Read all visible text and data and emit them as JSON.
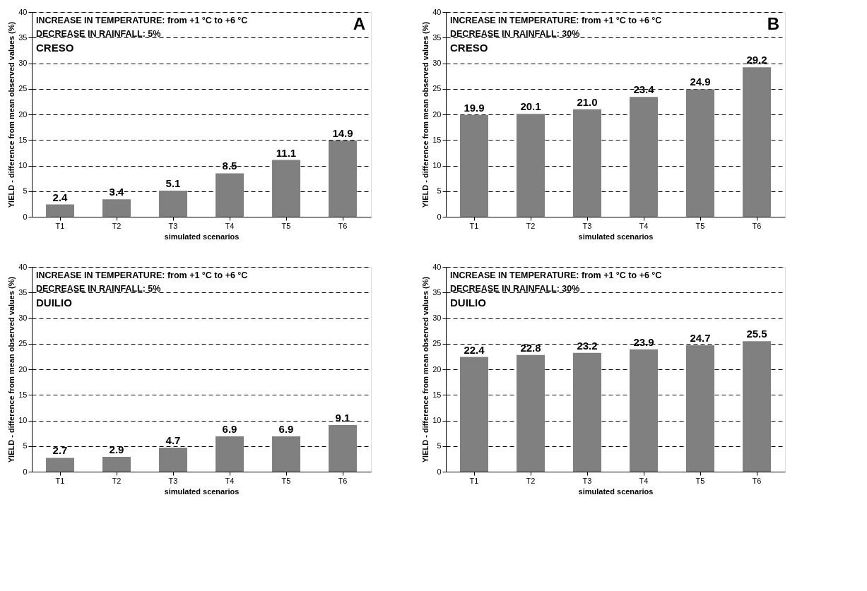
{
  "chart_data": [
    {
      "type": "bar",
      "title": "A",
      "xlabel": "simulated scenarios",
      "ylabel": "YIELD - difference from mean observed values (%)",
      "annotations": [
        "INCREASE IN TEMPERATURE: from +1 °C to +6 °C",
        "DECREASE IN RAINFALL: 5%",
        "CRESO"
      ],
      "categories": [
        "T1",
        "T2",
        "T3",
        "T4",
        "T5",
        "T6"
      ],
      "values": [
        2.4,
        3.4,
        5.1,
        8.5,
        11.1,
        14.9
      ],
      "value_labels": [
        "2.4",
        "3.4",
        "5.1",
        "8.5",
        "11.1",
        "14.9"
      ],
      "color": "#808080",
      "ylim": [
        0,
        40
      ],
      "yticks": [
        0,
        5,
        10,
        15,
        20,
        25,
        30,
        35,
        40
      ],
      "grid": "y"
    },
    {
      "type": "bar",
      "title": "B",
      "xlabel": "simulated scenarios",
      "ylabel": "YIELD - difference from mean observed values (%)",
      "annotations": [
        "INCREASE IN TEMPERATURE: from +1 °C to +6 °C",
        "DECREASE IN RAINFALL: 30%",
        "CRESO"
      ],
      "categories": [
        "T1",
        "T2",
        "T3",
        "T4",
        "T5",
        "T6"
      ],
      "values": [
        19.9,
        20.1,
        21.0,
        23.4,
        24.9,
        29.2
      ],
      "value_labels": [
        "19.9",
        "20.1",
        "21.0",
        "23.4",
        "24.9",
        "29.2"
      ],
      "color": "#808080",
      "ylim": [
        0,
        40
      ],
      "yticks": [
        0,
        5,
        10,
        15,
        20,
        25,
        30,
        35,
        40
      ],
      "grid": "y"
    },
    {
      "type": "bar",
      "xlabel": "simulated scenarios",
      "ylabel": "YIELD - difference from mean observed values (%)",
      "annotations": [
        "INCREASE IN TEMPERATURE: from +1 °C to +6 °C",
        "DECREASE IN RAINFALL: 5%",
        "DUILIO"
      ],
      "categories": [
        "T1",
        "T2",
        "T3",
        "T4",
        "T5",
        "T6"
      ],
      "values": [
        2.7,
        2.9,
        4.7,
        6.9,
        6.9,
        9.1
      ],
      "value_labels": [
        "2.7",
        "2.9",
        "4.7",
        "6.9",
        "6.9",
        "9.1"
      ],
      "color": "#808080",
      "ylim": [
        0,
        40
      ],
      "yticks": [
        0,
        5,
        10,
        15,
        20,
        25,
        30,
        35,
        40
      ],
      "grid": "y"
    },
    {
      "type": "bar",
      "xlabel": "simulated scenarios",
      "ylabel": "YIELD - difference from mean observed values (%)",
      "annotations": [
        "INCREASE IN TEMPERATURE: from +1 °C to +6 °C",
        "DECREASE IN RAINFALL: 30%",
        "DUILIO"
      ],
      "categories": [
        "T1",
        "T2",
        "T3",
        "T4",
        "T5",
        "T6"
      ],
      "values": [
        22.4,
        22.8,
        23.2,
        23.9,
        24.7,
        25.5
      ],
      "value_labels": [
        "22.4",
        "22.8",
        "23.2",
        "23.9",
        "24.7",
        "25.5"
      ],
      "color": "#808080",
      "ylim": [
        0,
        40
      ],
      "yticks": [
        0,
        5,
        10,
        15,
        20,
        25,
        30,
        35,
        40
      ],
      "grid": "y"
    }
  ]
}
